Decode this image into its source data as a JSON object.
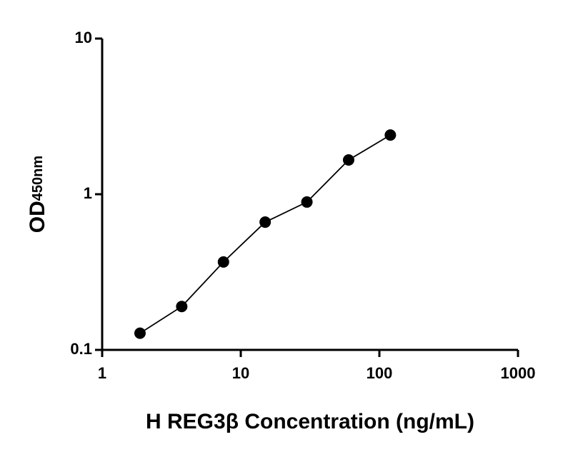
{
  "chart_data": {
    "type": "scatter",
    "x_label": "H REG3β Concentration (ng/mL)",
    "y_label": "OD",
    "y_label_subscript": "450nm",
    "x": [
      1.875,
      3.75,
      7.5,
      15,
      30,
      60,
      120
    ],
    "values": [
      0.128,
      0.19,
      0.367,
      0.662,
      0.891,
      1.66,
      2.4
    ],
    "color": "#000000",
    "line": true,
    "xscale": "log",
    "yscale": "log",
    "xlim": [
      1,
      1000
    ],
    "ylim": [
      0.1,
      10
    ],
    "xticks": [
      1,
      10,
      100,
      1000
    ],
    "yticks": [
      0.1,
      1,
      10
    ]
  }
}
